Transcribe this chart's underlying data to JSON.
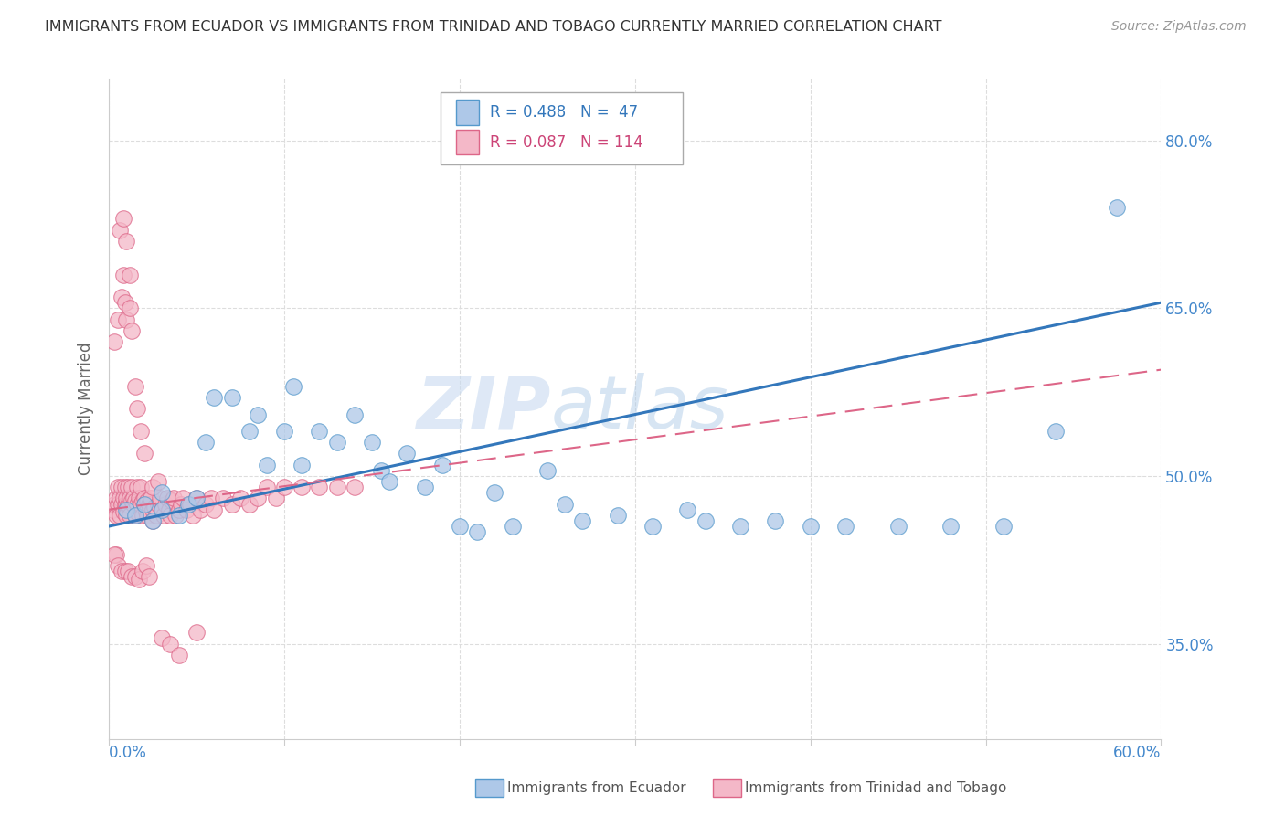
{
  "title": "IMMIGRANTS FROM ECUADOR VS IMMIGRANTS FROM TRINIDAD AND TOBAGO CURRENTLY MARRIED CORRELATION CHART",
  "source": "Source: ZipAtlas.com",
  "ylabel": "Currently Married",
  "y_ticks": [
    0.35,
    0.5,
    0.65,
    0.8
  ],
  "y_tick_labels": [
    "35.0%",
    "50.0%",
    "65.0%",
    "80.0%"
  ],
  "xmin": 0.0,
  "xmax": 0.6,
  "ymin": 0.265,
  "ymax": 0.855,
  "blue_label": "Immigrants from Ecuador",
  "pink_label": "Immigrants from Trinidad and Tobago",
  "blue_color": "#aec8e8",
  "pink_color": "#f4b8c8",
  "blue_edge": "#5599cc",
  "pink_edge": "#dd6688",
  "trend_blue": "#3377bb",
  "trend_pink": "#dd6688",
  "watermark1": "ZIP",
  "watermark2": "atlas",
  "legend_R_blue": "R = 0.488",
  "legend_N_blue": "N =  47",
  "legend_R_pink": "R = 0.087",
  "legend_N_pink": "N = 114",
  "blue_x": [
    0.01,
    0.015,
    0.02,
    0.025,
    0.03,
    0.03,
    0.04,
    0.045,
    0.05,
    0.055,
    0.06,
    0.07,
    0.08,
    0.085,
    0.09,
    0.1,
    0.105,
    0.11,
    0.12,
    0.13,
    0.14,
    0.15,
    0.155,
    0.16,
    0.17,
    0.18,
    0.19,
    0.2,
    0.21,
    0.22,
    0.23,
    0.25,
    0.26,
    0.27,
    0.29,
    0.31,
    0.33,
    0.34,
    0.36,
    0.38,
    0.4,
    0.42,
    0.45,
    0.48,
    0.51,
    0.54,
    0.575
  ],
  "blue_y": [
    0.47,
    0.465,
    0.475,
    0.46,
    0.47,
    0.485,
    0.465,
    0.475,
    0.48,
    0.53,
    0.57,
    0.57,
    0.54,
    0.555,
    0.51,
    0.54,
    0.58,
    0.51,
    0.54,
    0.53,
    0.555,
    0.53,
    0.505,
    0.495,
    0.52,
    0.49,
    0.51,
    0.455,
    0.45,
    0.485,
    0.455,
    0.505,
    0.475,
    0.46,
    0.465,
    0.455,
    0.47,
    0.46,
    0.455,
    0.46,
    0.455,
    0.455,
    0.455,
    0.455,
    0.455,
    0.54,
    0.74
  ],
  "pink_x": [
    0.002,
    0.003,
    0.004,
    0.004,
    0.005,
    0.005,
    0.006,
    0.006,
    0.007,
    0.007,
    0.008,
    0.008,
    0.009,
    0.009,
    0.01,
    0.01,
    0.01,
    0.011,
    0.011,
    0.012,
    0.012,
    0.013,
    0.013,
    0.014,
    0.014,
    0.015,
    0.015,
    0.016,
    0.016,
    0.017,
    0.017,
    0.018,
    0.018,
    0.019,
    0.019,
    0.02,
    0.02,
    0.021,
    0.022,
    0.022,
    0.023,
    0.024,
    0.025,
    0.025,
    0.026,
    0.027,
    0.028,
    0.029,
    0.03,
    0.031,
    0.032,
    0.033,
    0.034,
    0.035,
    0.036,
    0.037,
    0.038,
    0.04,
    0.041,
    0.042,
    0.044,
    0.046,
    0.048,
    0.05,
    0.052,
    0.055,
    0.058,
    0.06,
    0.065,
    0.07,
    0.075,
    0.08,
    0.085,
    0.09,
    0.095,
    0.1,
    0.11,
    0.12,
    0.13,
    0.14,
    0.003,
    0.005,
    0.007,
    0.008,
    0.009,
    0.01,
    0.012,
    0.013,
    0.015,
    0.016,
    0.018,
    0.02,
    0.025,
    0.028,
    0.006,
    0.008,
    0.01,
    0.012,
    0.004,
    0.003,
    0.005,
    0.007,
    0.009,
    0.011,
    0.013,
    0.015,
    0.017,
    0.019,
    0.021,
    0.023,
    0.03,
    0.035,
    0.04,
    0.05
  ],
  "pink_y": [
    0.47,
    0.475,
    0.48,
    0.465,
    0.49,
    0.475,
    0.48,
    0.465,
    0.49,
    0.475,
    0.48,
    0.468,
    0.475,
    0.49,
    0.475,
    0.48,
    0.465,
    0.49,
    0.475,
    0.48,
    0.465,
    0.478,
    0.49,
    0.475,
    0.48,
    0.465,
    0.478,
    0.49,
    0.475,
    0.48,
    0.465,
    0.475,
    0.49,
    0.478,
    0.465,
    0.48,
    0.475,
    0.468,
    0.478,
    0.465,
    0.475,
    0.48,
    0.47,
    0.46,
    0.472,
    0.465,
    0.475,
    0.48,
    0.47,
    0.465,
    0.475,
    0.48,
    0.47,
    0.465,
    0.478,
    0.48,
    0.465,
    0.47,
    0.475,
    0.48,
    0.47,
    0.475,
    0.465,
    0.48,
    0.47,
    0.475,
    0.48,
    0.47,
    0.48,
    0.475,
    0.48,
    0.475,
    0.48,
    0.49,
    0.48,
    0.49,
    0.49,
    0.49,
    0.49,
    0.49,
    0.62,
    0.64,
    0.66,
    0.68,
    0.655,
    0.64,
    0.65,
    0.63,
    0.58,
    0.56,
    0.54,
    0.52,
    0.49,
    0.495,
    0.72,
    0.73,
    0.71,
    0.68,
    0.43,
    0.43,
    0.42,
    0.415,
    0.415,
    0.415,
    0.41,
    0.41,
    0.408,
    0.415,
    0.42,
    0.41,
    0.355,
    0.35,
    0.34,
    0.36
  ]
}
